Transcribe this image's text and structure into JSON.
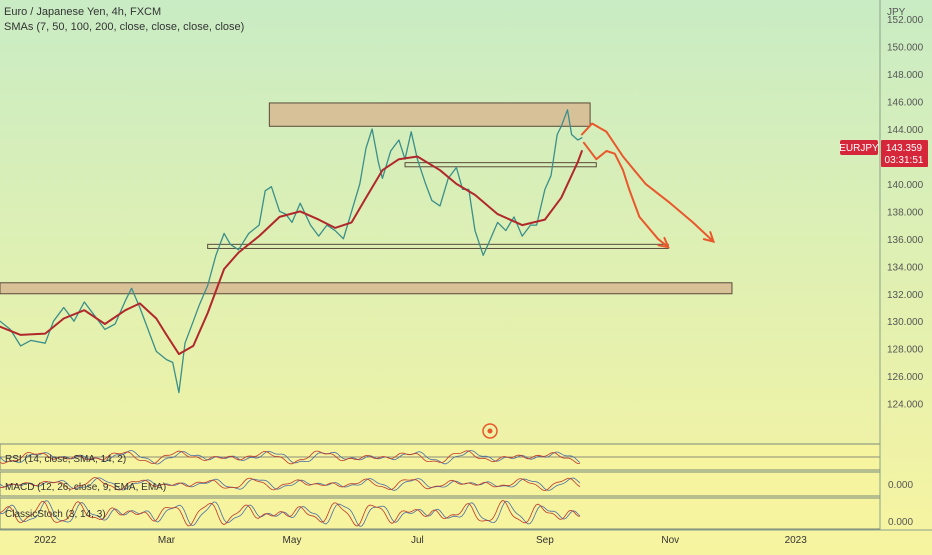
{
  "header": {
    "title": "Euro / Japanese Yen, 4h, FXCM",
    "indicator": "SMAs (7, 50, 100, 200, close, close, close, close)"
  },
  "currency": "JPY",
  "ticker": {
    "symbol": "EURJPY",
    "price": "143.359",
    "countdown": "03:31:51"
  },
  "panes": {
    "rsi": "RSI (14, close, SMA, 14, 2)",
    "macd": "MACD (12, 26, close, 9, EMA, EMA)",
    "macd_tick": "0.000",
    "stoch": "ClassicStoch (3, 14, 3)",
    "stoch_tick": "0.000"
  },
  "colors": {
    "bg_top": "#c9ecc4",
    "bg_bottom": "#f7f4a0",
    "price": "#3a8f8a",
    "sma": "#b0282c",
    "zone": "#d7b893",
    "drawing": "#e9582c",
    "ticker_bg": "#d6263a"
  },
  "chart_data": {
    "type": "line",
    "title": "Euro / Japanese Yen, 4h, FXCM",
    "ylabel": "JPY",
    "xlabel": "",
    "ylim": [
      121.2,
      153.4
    ],
    "y_ticks": [
      "152.000",
      "150.000",
      "148.000",
      "146.000",
      "144.000",
      "142.000",
      "140.000",
      "138.000",
      "136.000",
      "134.000",
      "132.000",
      "130.000",
      "128.000",
      "126.000",
      "124.000"
    ],
    "x_ticks": [
      "2022",
      "Mar",
      "May",
      "Jul",
      "Sep",
      "Nov",
      "2023"
    ],
    "x_tick_dates": [
      "2022-01-01",
      "2022-03-01",
      "2022-05-01",
      "2022-07-01",
      "2022-09-01",
      "2022-11-01",
      "2023-01-01"
    ],
    "x_range": [
      "2021-12-10",
      "2023-02-11"
    ],
    "series": [
      {
        "name": "EURJPY",
        "points": [
          [
            "2021-12-10",
            130.0
          ],
          [
            "2021-12-15",
            129.4
          ],
          [
            "2021-12-20",
            128.2
          ],
          [
            "2021-12-25",
            128.6
          ],
          [
            "2022-01-01",
            128.4
          ],
          [
            "2022-01-05",
            130.0
          ],
          [
            "2022-01-10",
            131.0
          ],
          [
            "2022-01-15",
            130.0
          ],
          [
            "2022-01-20",
            131.4
          ],
          [
            "2022-01-25",
            130.4
          ],
          [
            "2022-01-30",
            129.4
          ],
          [
            "2022-02-04",
            129.8
          ],
          [
            "2022-02-09",
            131.5
          ],
          [
            "2022-02-12",
            132.4
          ],
          [
            "2022-02-16",
            131.0
          ],
          [
            "2022-02-19",
            129.8
          ],
          [
            "2022-02-24",
            127.8
          ],
          [
            "2022-03-01",
            127.2
          ],
          [
            "2022-03-04",
            127.0
          ],
          [
            "2022-03-07",
            124.8
          ],
          [
            "2022-03-10",
            128.4
          ],
          [
            "2022-03-14",
            130.0
          ],
          [
            "2022-03-17",
            131.2
          ],
          [
            "2022-03-21",
            132.6
          ],
          [
            "2022-03-25",
            134.8
          ],
          [
            "2022-03-29",
            136.4
          ],
          [
            "2022-04-01",
            135.6
          ],
          [
            "2022-04-05",
            135.2
          ],
          [
            "2022-04-10",
            136.4
          ],
          [
            "2022-04-15",
            137.0
          ],
          [
            "2022-04-18",
            139.5
          ],
          [
            "2022-04-21",
            139.8
          ],
          [
            "2022-04-25",
            138.0
          ],
          [
            "2022-04-28",
            137.8
          ],
          [
            "2022-05-01",
            137.2
          ],
          [
            "2022-05-05",
            138.6
          ],
          [
            "2022-05-10",
            137.0
          ],
          [
            "2022-05-14",
            136.2
          ],
          [
            "2022-05-18",
            137.0
          ],
          [
            "2022-05-22",
            136.6
          ],
          [
            "2022-05-26",
            136.0
          ],
          [
            "2022-05-30",
            138.0
          ],
          [
            "2022-06-03",
            140.0
          ],
          [
            "2022-06-06",
            142.6
          ],
          [
            "2022-06-09",
            144.0
          ],
          [
            "2022-06-12",
            141.6
          ],
          [
            "2022-06-14",
            140.4
          ],
          [
            "2022-06-18",
            142.4
          ],
          [
            "2022-06-22",
            143.2
          ],
          [
            "2022-06-25",
            141.8
          ],
          [
            "2022-06-28",
            143.8
          ],
          [
            "2022-07-01",
            141.8
          ],
          [
            "2022-07-05",
            140.0
          ],
          [
            "2022-07-08",
            138.8
          ],
          [
            "2022-07-12",
            138.4
          ],
          [
            "2022-07-16",
            140.4
          ],
          [
            "2022-07-20",
            141.2
          ],
          [
            "2022-07-23",
            139.6
          ],
          [
            "2022-07-26",
            139.6
          ],
          [
            "2022-07-29",
            136.6
          ],
          [
            "2022-08-02",
            134.8
          ],
          [
            "2022-08-05",
            135.8
          ],
          [
            "2022-08-09",
            137.2
          ],
          [
            "2022-08-13",
            136.6
          ],
          [
            "2022-08-17",
            137.6
          ],
          [
            "2022-08-21",
            136.2
          ],
          [
            "2022-08-25",
            137.0
          ],
          [
            "2022-08-28",
            137.0
          ],
          [
            "2022-09-01",
            139.6
          ],
          [
            "2022-09-04",
            140.6
          ],
          [
            "2022-09-07",
            143.6
          ],
          [
            "2022-09-09",
            144.2
          ],
          [
            "2022-09-12",
            145.4
          ],
          [
            "2022-09-14",
            143.6
          ],
          [
            "2022-09-17",
            143.2
          ],
          [
            "2022-09-19",
            143.359
          ]
        ]
      },
      {
        "name": "SMA",
        "points": [
          [
            "2021-12-10",
            129.6
          ],
          [
            "2021-12-20",
            129.0
          ],
          [
            "2022-01-01",
            129.1
          ],
          [
            "2022-01-10",
            130.2
          ],
          [
            "2022-01-20",
            130.8
          ],
          [
            "2022-01-30",
            129.8
          ],
          [
            "2022-02-09",
            130.8
          ],
          [
            "2022-02-16",
            131.3
          ],
          [
            "2022-02-24",
            130.2
          ],
          [
            "2022-03-01",
            129.0
          ],
          [
            "2022-03-07",
            127.6
          ],
          [
            "2022-03-14",
            128.2
          ],
          [
            "2022-03-21",
            130.6
          ],
          [
            "2022-03-29",
            133.8
          ],
          [
            "2022-04-05",
            135.0
          ],
          [
            "2022-04-15",
            136.2
          ],
          [
            "2022-04-25",
            137.6
          ],
          [
            "2022-05-05",
            138.0
          ],
          [
            "2022-05-14",
            137.4
          ],
          [
            "2022-05-22",
            136.8
          ],
          [
            "2022-05-30",
            137.2
          ],
          [
            "2022-06-06",
            139.0
          ],
          [
            "2022-06-14",
            141.0
          ],
          [
            "2022-06-22",
            141.8
          ],
          [
            "2022-07-01",
            142.0
          ],
          [
            "2022-07-12",
            141.0
          ],
          [
            "2022-07-20",
            140.0
          ],
          [
            "2022-07-29",
            139.2
          ],
          [
            "2022-08-09",
            137.8
          ],
          [
            "2022-08-21",
            137.0
          ],
          [
            "2022-09-01",
            137.4
          ],
          [
            "2022-09-09",
            139.0
          ],
          [
            "2022-09-17",
            141.6
          ],
          [
            "2022-09-19",
            142.4
          ]
        ]
      }
    ],
    "zones": [
      {
        "from": "2022-04-20",
        "to": "2022-09-23",
        "low": 144.2,
        "high": 145.9
      },
      {
        "from": "2022-06-25",
        "to": "2022-09-26",
        "low": 141.25,
        "high": 141.55
      },
      {
        "from": "2022-03-21",
        "to": "2022-10-31",
        "low": 135.3,
        "high": 135.6
      },
      {
        "from": "2021-12-10",
        "to": "2022-12-01",
        "low": 132.0,
        "high": 132.8
      }
    ],
    "projections": [
      [
        [
          "2022-09-19",
          143.6
        ],
        [
          "2022-09-24",
          144.4
        ],
        [
          "2022-10-01",
          143.8
        ],
        [
          "2022-10-09",
          142.0
        ],
        [
          "2022-10-20",
          140.0
        ],
        [
          "2022-11-01",
          138.6
        ],
        [
          "2022-11-12",
          137.2
        ],
        [
          "2022-11-22",
          135.8
        ]
      ],
      [
        [
          "2022-09-20",
          143.0
        ],
        [
          "2022-09-26",
          141.8
        ],
        [
          "2022-10-01",
          142.4
        ],
        [
          "2022-10-05",
          142.2
        ],
        [
          "2022-10-09",
          141.0
        ],
        [
          "2022-10-12",
          139.6
        ],
        [
          "2022-10-17",
          137.6
        ],
        [
          "2022-10-26",
          136.0
        ],
        [
          "2022-10-31",
          135.4
        ]
      ]
    ],
    "grid": false,
    "legend": "none"
  }
}
